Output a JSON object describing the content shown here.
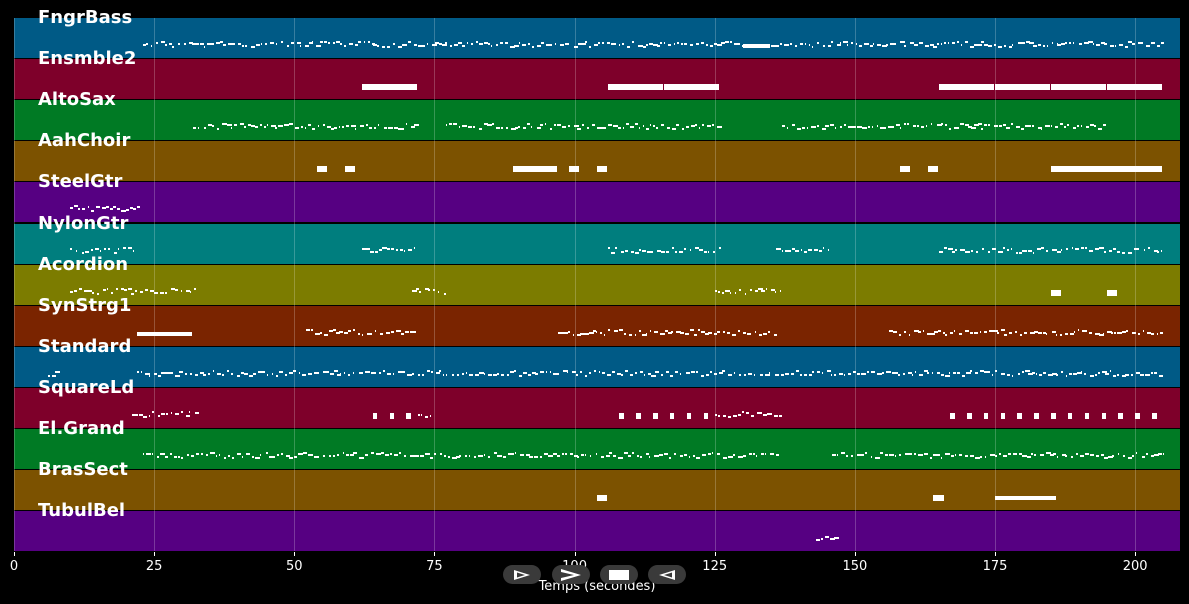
{
  "tracks": [
    {
      "name": "FngrBass",
      "color": "#005a86"
    },
    {
      "name": "Ensmble2",
      "color": "#7e002a"
    },
    {
      "name": "AltoSax",
      "color": "#007a24"
    },
    {
      "name": "AahChoir",
      "color": "#7c5200"
    },
    {
      "name": "SteelGtr",
      "color": "#560082"
    },
    {
      "name": "NylonGtr",
      "color": "#007e7e"
    },
    {
      "name": "Acordion",
      "color": "#7c7c00"
    },
    {
      "name": "SynStrg1",
      "color": "#7a2400"
    },
    {
      "name": "Standard",
      "color": "#005a86"
    },
    {
      "name": "SquareLd",
      "color": "#7e002a"
    },
    {
      "name": "El.Grand",
      "color": "#007a24"
    },
    {
      "name": "BrasSect",
      "color": "#7c5200"
    },
    {
      "name": "TubulBel",
      "color": "#560082"
    }
  ],
  "x_axis": {
    "label": "Temps (secondes)",
    "ticks": [
      "0",
      "25",
      "50",
      "75",
      "100",
      "125",
      "150",
      "175",
      "200"
    ],
    "min": 0,
    "max": 208
  },
  "controls": [
    {
      "name": "play-button",
      "icon": "play-outline-icon"
    },
    {
      "name": "fast-forward-button",
      "icon": "fast-forward-icon"
    },
    {
      "name": "stop-button",
      "icon": "stop-icon"
    },
    {
      "name": "rewind-button",
      "icon": "rewind-icon"
    }
  ],
  "notes": {
    "FngrBass": [
      [
        23,
        64,
        "dense"
      ],
      [
        64,
        72,
        "dense"
      ],
      [
        72,
        130,
        "dense"
      ],
      [
        130,
        135,
        "solid"
      ],
      [
        135,
        186,
        "dense"
      ],
      [
        186,
        205,
        "dense"
      ]
    ],
    "Ensmble2": [
      [
        62,
        72,
        "block"
      ],
      [
        106,
        116,
        "block"
      ],
      [
        116,
        126,
        "block"
      ],
      [
        165,
        175,
        "block"
      ],
      [
        175,
        185,
        "block"
      ],
      [
        185,
        195,
        "block"
      ],
      [
        195,
        205,
        "block"
      ]
    ],
    "AltoSax": [
      [
        32,
        72,
        "dense"
      ],
      [
        77,
        126,
        "dense"
      ],
      [
        137,
        195,
        "dense"
      ]
    ],
    "AahChoir": [
      [
        54,
        56,
        "block"
      ],
      [
        59,
        61,
        "block"
      ],
      [
        89,
        97,
        "block"
      ],
      [
        99,
        101,
        "block"
      ],
      [
        104,
        106,
        "block"
      ],
      [
        158,
        160,
        "block"
      ],
      [
        163,
        165,
        "block"
      ],
      [
        185,
        205,
        "block"
      ]
    ],
    "SteelGtr": [
      [
        10,
        22,
        "dense"
      ]
    ],
    "NylonGtr": [
      [
        10,
        22,
        "dense"
      ],
      [
        62,
        72,
        "dense"
      ],
      [
        106,
        126,
        "dense"
      ],
      [
        136,
        146,
        "dense"
      ],
      [
        165,
        205,
        "dense"
      ]
    ],
    "Acordion": [
      [
        10,
        33,
        "dense"
      ],
      [
        71,
        77,
        "dense"
      ],
      [
        125,
        137,
        "dense"
      ],
      [
        185,
        187,
        "block"
      ],
      [
        195,
        197,
        "block"
      ]
    ],
    "SynStrg1": [
      [
        22,
        32,
        "solid"
      ],
      [
        52,
        62,
        "dense"
      ],
      [
        62,
        72,
        "dense"
      ],
      [
        97,
        106,
        "dense"
      ],
      [
        106,
        136,
        "dense"
      ],
      [
        156,
        166,
        "dense"
      ],
      [
        166,
        205,
        "dense"
      ]
    ],
    "Standard": [
      [
        6,
        8,
        "dense"
      ],
      [
        22,
        205,
        "dense"
      ]
    ],
    "SquareLd": [
      [
        21,
        33,
        "dense"
      ],
      [
        64,
        65,
        "block"
      ],
      [
        67,
        68,
        "block"
      ],
      [
        70,
        71,
        "block"
      ],
      [
        72,
        75,
        "dense"
      ],
      [
        108,
        109,
        "block"
      ],
      [
        111,
        112,
        "block"
      ],
      [
        114,
        115,
        "block"
      ],
      [
        117,
        118,
        "block"
      ],
      [
        120,
        121,
        "block"
      ],
      [
        123,
        124,
        "block"
      ],
      [
        125,
        137,
        "dense"
      ],
      [
        167,
        168,
        "block"
      ],
      [
        170,
        171,
        "block"
      ],
      [
        173,
        174,
        "block"
      ],
      [
        176,
        177,
        "block"
      ],
      [
        179,
        180,
        "block"
      ],
      [
        182,
        183,
        "block"
      ],
      [
        185,
        186,
        "block"
      ],
      [
        188,
        189,
        "block"
      ],
      [
        191,
        192,
        "block"
      ],
      [
        194,
        195,
        "block"
      ],
      [
        197,
        198,
        "block"
      ],
      [
        200,
        201,
        "block"
      ],
      [
        203,
        204,
        "block"
      ]
    ],
    "El.Grand": [
      [
        23,
        136,
        "dense"
      ],
      [
        146,
        205,
        "dense"
      ]
    ],
    "BrasSect": [
      [
        104,
        106,
        "block"
      ],
      [
        164,
        166,
        "block"
      ],
      [
        175,
        186,
        "solid"
      ]
    ],
    "TubulBel": [
      [
        143,
        147,
        "dense"
      ]
    ]
  }
}
